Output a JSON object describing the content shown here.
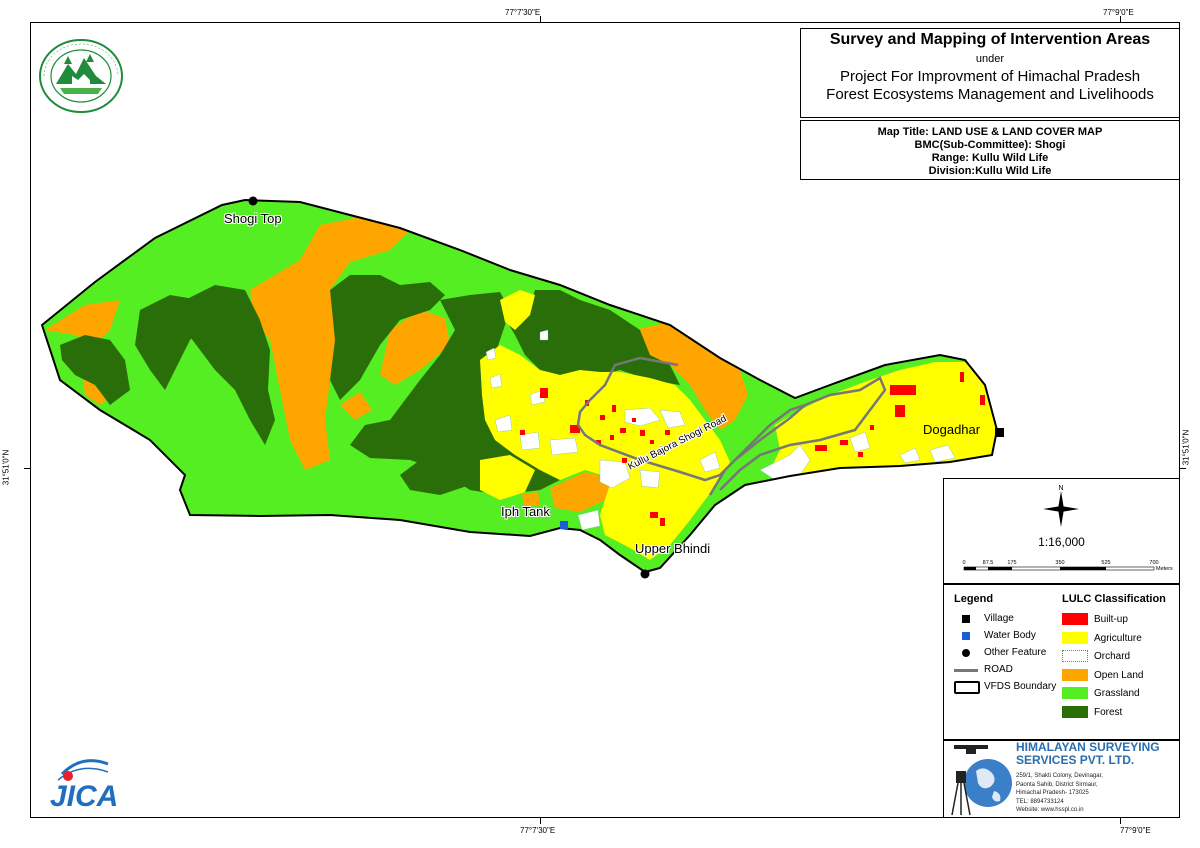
{
  "coords": {
    "top_left": "77°7'30\"E",
    "top_right": "77°9'0\"E",
    "bottom_left": "77°7'30\"E",
    "bottom_right": "77°9'0\"E",
    "left": "31°51'0\"N",
    "right": "31°51'0\"N"
  },
  "header": {
    "title": "Survey and Mapping of Intervention Areas",
    "under": "under",
    "project_line1": "Project For Improvment of Himachal Pradesh",
    "project_line2": "Forest Ecosystems Management and Livelihoods"
  },
  "info": {
    "map_title": "Map Title: LAND USE & LAND COVER MAP",
    "bmc": "BMC(Sub-Committee): Shogi",
    "range": "Range: Kullu Wild Life",
    "division": "Division:Kullu Wild Life"
  },
  "places": {
    "shogi_top": "Shogi Top",
    "dogadhar": "Dogadhar",
    "iph_tank": "Iph Tank",
    "upper_bhindi": "Upper Bhindi",
    "road_label": "Kullu Bajora Shogi Road"
  },
  "scale": {
    "north": "N",
    "ratio": "1:16,000",
    "ticks": [
      "0",
      "87.5",
      "175",
      "350",
      "525",
      "700"
    ],
    "unit": "Meters"
  },
  "legend": {
    "title": "Legend",
    "items": [
      "Village",
      "Water Body",
      "Other Feature",
      "ROAD",
      "VFDS  Boundary"
    ]
  },
  "lulc": {
    "title": "LULC Classification",
    "items": [
      {
        "label": "Built-up",
        "color": "#ff0000"
      },
      {
        "label": "Agriculture",
        "color": "#ffff00"
      },
      {
        "label": "Orchard",
        "color": "#ffffff"
      },
      {
        "label": "Open Land",
        "color": "#ffa500"
      },
      {
        "label": "Grassland",
        "color": "#55ee22"
      },
      {
        "label": "Forest",
        "color": "#2a6e0a"
      }
    ]
  },
  "company": {
    "name1": "HIMALAYAN SURVEYING",
    "name2": "SERVICES PVT. LTD.",
    "address": [
      "259/1, Shakti Colony, Devinagar,",
      "Paonta Sahib, District Sirmaur,",
      "Himachal Pradesh- 173025",
      "TEL: 8894733124",
      "Website: www.hsspl.co.in"
    ]
  },
  "logos": {
    "forest_dept_text": "वन ही जल, विनय जल वन विभाग हिमाचल प्रदेश",
    "jica": "JICA"
  }
}
